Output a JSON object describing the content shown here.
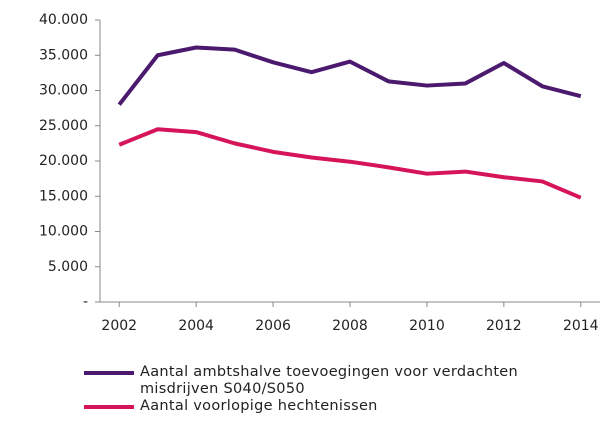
{
  "chart_data": {
    "type": "line",
    "x": [
      2002,
      2003,
      2004,
      2005,
      2006,
      2007,
      2008,
      2009,
      2010,
      2011,
      2012,
      2013,
      2014
    ],
    "series": [
      {
        "name": "Aantal ambtshalve toevoegingen voor verdachten misdrijven S040/S050",
        "color": "#4b1a6e",
        "values": [
          28000,
          35000,
          36100,
          35800,
          34000,
          32600,
          34100,
          31300,
          30700,
          31000,
          33900,
          30600,
          29200
        ]
      },
      {
        "name": "Aantal voorlopige hechtenissen",
        "color": "#d6145a",
        "values": [
          22300,
          24500,
          24100,
          22500,
          21300,
          20500,
          19900,
          19100,
          18200,
          18500,
          17700,
          17100,
          14800
        ]
      }
    ],
    "xlim": [
      2001.5,
      2014.5
    ],
    "xticks": [
      2002,
      2004,
      2006,
      2008,
      2010,
      2012,
      2014
    ],
    "ylim": [
      0,
      40000
    ],
    "yticks": [
      {
        "value": 0,
        "label": "-"
      },
      {
        "value": 5000,
        "label": "5.000"
      },
      {
        "value": 10000,
        "label": "10.000"
      },
      {
        "value": 15000,
        "label": "15.000"
      },
      {
        "value": 20000,
        "label": "20.000"
      },
      {
        "value": 25000,
        "label": "25.000"
      },
      {
        "value": 30000,
        "label": "30.000"
      },
      {
        "value": 35000,
        "label": "35.000"
      },
      {
        "value": 40000,
        "label": "40.000"
      }
    ],
    "grid": false
  }
}
